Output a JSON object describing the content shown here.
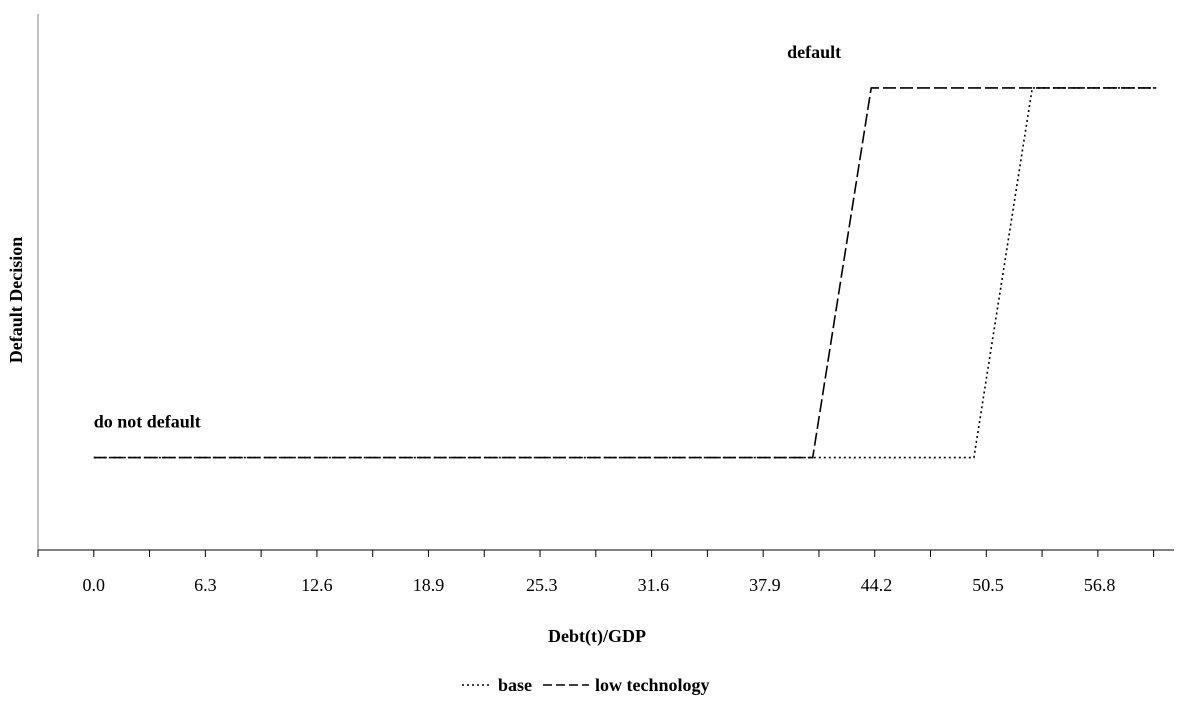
{
  "chart_data": {
    "type": "line",
    "title": "",
    "xlabel": "Debt(t)/GDP",
    "ylabel": "Default Decision",
    "x_tick_labels": [
      "0.0",
      "6.3",
      "12.6",
      "18.9",
      "25.3",
      "31.6",
      "37.9",
      "44.2",
      "50.5",
      "56.8"
    ],
    "xlim": [
      -3.15,
      61.0
    ],
    "ylim": [
      -0.25,
      1.2
    ],
    "y_states": {
      "0": "do not default",
      "1": "default"
    },
    "annotations": [
      {
        "text": "do not default",
        "x": 0.0,
        "y": 0.0
      },
      {
        "text": "default",
        "x": 43.9,
        "y": 1.0
      }
    ],
    "grid": false,
    "legend_position": "bottom-center",
    "series": [
      {
        "name": "base",
        "style": "dotted",
        "color": "#000000",
        "points": [
          [
            0.0,
            0
          ],
          [
            49.7,
            0
          ],
          [
            53.0,
            1
          ],
          [
            60.0,
            1
          ]
        ]
      },
      {
        "name": "low technology",
        "style": "dashed",
        "color": "#000000",
        "points": [
          [
            0.0,
            0
          ],
          [
            40.6,
            0
          ],
          [
            43.9,
            1
          ],
          [
            60.0,
            1
          ]
        ]
      }
    ]
  }
}
